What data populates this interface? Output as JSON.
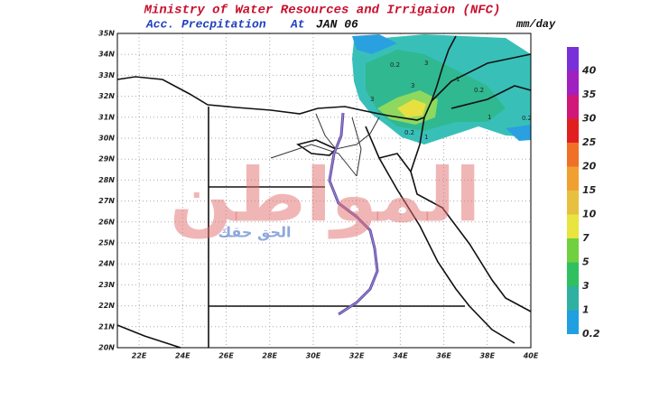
{
  "header": {
    "title": "Ministry of Water Resources and Irrigaion (NFC)",
    "product": "Acc. Precpitation",
    "at": "At",
    "date": "JAN 06",
    "units": "mm/day"
  },
  "map": {
    "lat_labels": [
      "35N",
      "34N",
      "33N",
      "32N",
      "31N",
      "30N",
      "29N",
      "28N",
      "27N",
      "26N",
      "25N",
      "24N",
      "23N",
      "22N",
      "21N",
      "20N"
    ],
    "lon_labels": [
      "22E",
      "24E",
      "26E",
      "28E",
      "30E",
      "32E",
      "34E",
      "36E",
      "38E",
      "40E"
    ],
    "contour_labels": [
      "0.2",
      "3",
      "1",
      "0.2",
      "3",
      "1",
      "0.2",
      "0.2",
      "3",
      "1"
    ]
  },
  "colorbar": {
    "labels": [
      40,
      35,
      30,
      25,
      20,
      15,
      10,
      7,
      5,
      3,
      1,
      0.2
    ]
  },
  "watermark": {
    "name": "المواطن",
    "slogan": "الحق حقك"
  }
}
